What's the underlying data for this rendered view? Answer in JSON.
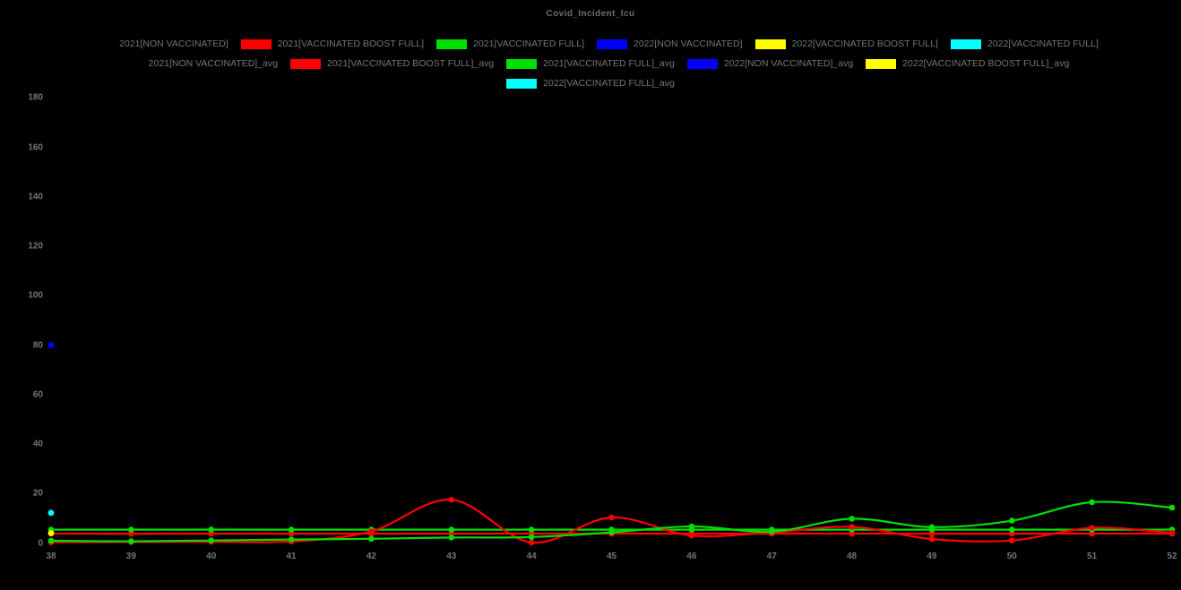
{
  "title": "Covid_Incident_Icu",
  "colors": {
    "background": "#000000",
    "text_muted": "#757575",
    "series_non_vaccinated_2021": "#111111",
    "series_vaccinated_boost_full_2021": "#ff0000",
    "series_vaccinated_full_2021": "#00e000",
    "series_non_vaccinated_2022": "#0000ff",
    "series_vaccinated_boost_full_2022": "#ffff00",
    "series_vaccinated_full_2022": "#00ffff"
  },
  "legend": {
    "rows": [
      [
        {
          "label": "2021[NON VACCINATED]",
          "color": "#000000"
        },
        {
          "label": "2021[VACCINATED BOOST FULL]",
          "color": "#ff0000"
        },
        {
          "label": "2021[VACCINATED FULL]",
          "color": "#00e000"
        },
        {
          "label": "2022[NON VACCINATED]",
          "color": "#0000ff"
        },
        {
          "label": "2022[VACCINATED BOOST FULL]",
          "color": "#ffff00"
        },
        {
          "label": "2022[VACCINATED FULL]",
          "color": "#00ffff"
        }
      ],
      [
        {
          "label": "2021[NON VACCINATED]_avg",
          "color": "#000000"
        },
        {
          "label": "2021[VACCINATED BOOST FULL]_avg",
          "color": "#ff0000"
        },
        {
          "label": "2021[VACCINATED FULL]_avg",
          "color": "#00e000"
        },
        {
          "label": "2022[NON VACCINATED]_avg",
          "color": "#0000ff"
        },
        {
          "label": "2022[VACCINATED BOOST FULL]_avg",
          "color": "#ffff00"
        }
      ],
      [
        {
          "label": "2022[VACCINATED FULL]_avg",
          "color": "#00ffff"
        }
      ]
    ]
  },
  "chart_data": {
    "type": "line",
    "title": "Covid_Incident_Icu",
    "xlabel": "",
    "ylabel": "",
    "x": [
      38,
      39,
      40,
      41,
      42,
      43,
      44,
      45,
      46,
      47,
      48,
      49,
      50,
      51,
      52
    ],
    "x_ticks": [
      38,
      39,
      40,
      41,
      42,
      43,
      44,
      45,
      46,
      47,
      48,
      49,
      50,
      51,
      52
    ],
    "y_ticks": [
      0,
      20,
      40,
      60,
      80,
      100,
      120,
      140,
      160,
      180
    ],
    "ylim": [
      0,
      187
    ],
    "grid": false,
    "legend_position": "top",
    "series": [
      {
        "name": "2021[NON VACCINATED]",
        "color": "#111111",
        "values": [
          5.5,
          3.0,
          6.0,
          4.2,
          4.2,
          4.2,
          4.2,
          4.2,
          4.2,
          4.2,
          4.2,
          4.2,
          4.2,
          4.2,
          4.2
        ]
      },
      {
        "name": "2021[NON VACCINATED]_avg",
        "color": "#000000",
        "values": [
          4.2,
          4.2,
          4.2,
          4.2,
          4.2,
          4.2,
          4.2,
          4.2,
          4.2,
          4.2,
          4.2,
          4.2,
          4.2,
          4.2,
          4.2
        ]
      },
      {
        "name": "2021[VACCINATED BOOST FULL]_avg",
        "color": "#ff0000",
        "values": [
          3.8,
          3.8,
          3.8,
          3.8,
          3.8,
          3.8,
          3.8,
          3.8,
          3.8,
          3.8,
          3.8,
          3.8,
          3.8,
          3.8,
          3.8
        ]
      },
      {
        "name": "2021[VACCINATED FULL]_avg",
        "color": "#00e000",
        "values": [
          5.4,
          5.4,
          5.4,
          5.4,
          5.4,
          5.4,
          5.4,
          5.4,
          5.4,
          5.4,
          5.4,
          5.4,
          5.4,
          5.4,
          5.4
        ]
      },
      {
        "name": "2021[VACCINATED BOOST FULL]",
        "color": "#ff0000",
        "values": [
          0.3,
          0.4,
          0.5,
          0.6,
          4.7,
          17.5,
          0.2,
          10.3,
          3.0,
          4.3,
          6.5,
          1.6,
          1.0,
          6.1,
          4.1
        ]
      },
      {
        "name": "2021[VACCINATED FULL]",
        "color": "#00e000",
        "values": [
          0.9,
          0.7,
          1.0,
          1.4,
          1.7,
          2.2,
          2.4,
          4.3,
          6.7,
          4.6,
          9.8,
          6.4,
          9.0,
          16.5,
          14.3
        ]
      },
      {
        "name": "2022[NON VACCINATED]_avg",
        "color": "#0000ff",
        "values": [
          80
        ]
      },
      {
        "name": "2022[NON VACCINATED]",
        "color": "#0000ff",
        "values": [
          80
        ]
      },
      {
        "name": "2022[VACCINATED BOOST FULL]_avg",
        "color": "#ffff00",
        "values": [
          4.0
        ]
      },
      {
        "name": "2022[VACCINATED BOOST FULL]",
        "color": "#ffff00",
        "values": [
          4.0
        ]
      },
      {
        "name": "2022[VACCINATED FULL]_avg",
        "color": "#00ffff",
        "values": [
          12.2
        ]
      },
      {
        "name": "2022[VACCINATED FULL]",
        "color": "#00ffff",
        "values": [
          12.2
        ]
      }
    ]
  }
}
